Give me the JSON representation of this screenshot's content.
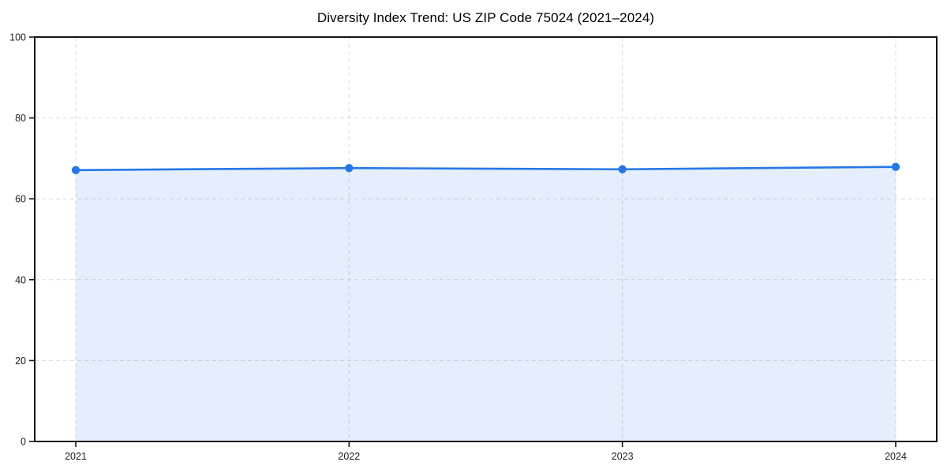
{
  "chart_data": {
    "type": "line",
    "title": "Diversity Index Trend: US ZIP Code 75024 (2021–2024)",
    "x": [
      "2021",
      "2022",
      "2023",
      "2024"
    ],
    "values": [
      67.1,
      67.6,
      67.3,
      67.9
    ],
    "xlabel": "",
    "ylabel": "",
    "ylim": [
      0,
      100
    ],
    "yticks": [
      0,
      20,
      40,
      60,
      80,
      100
    ],
    "grid": true,
    "grid_style": "dashed",
    "area_fill": true,
    "markers": true,
    "legend_position": "none",
    "colors": {
      "line": "#2577e6",
      "grid": "#dadada",
      "spine": "#141414",
      "text": "#1a1a1a",
      "background": "#ffffff"
    }
  }
}
